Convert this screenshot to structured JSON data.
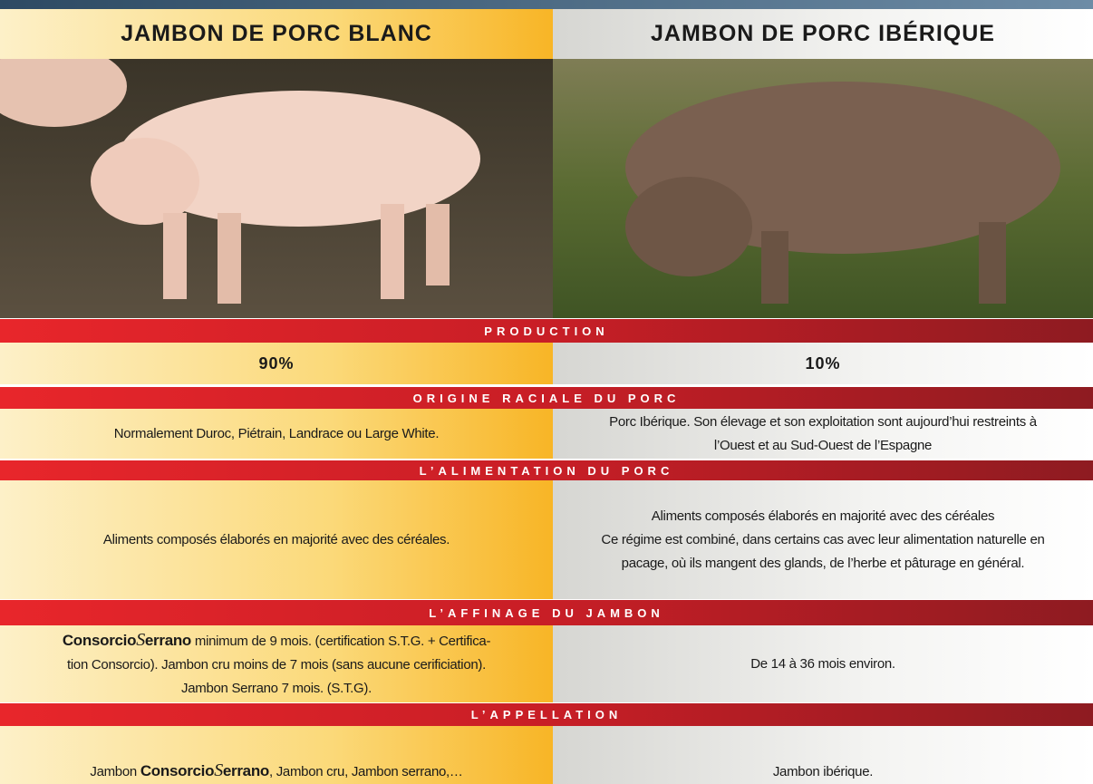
{
  "header": {
    "left": "JAMBON DE PORC BLANC",
    "right": "JAMBON DE PORC IBÉRIQUE"
  },
  "sections": [
    {
      "title": "PRODUCTION",
      "left": [
        "90%"
      ],
      "right": [
        "10%"
      ]
    },
    {
      "title": "ORIGINE RACIALE DU PORC",
      "left": [
        "Normalement  Duroc, Piétrain, Landrace ou Large White."
      ],
      "right": [
        "Porc Ibérique. Son élevage et son exploitation sont aujourd’hui restreints à",
        "l’Ouest et au Sud-Ouest de l’Espagne"
      ]
    },
    {
      "title": "L’ALIMENTATION DU PORC",
      "left": [
        "Aliments composés élaborés en majorité avec des céréales."
      ],
      "right": [
        "Aliments composés élaborés en majorité avec des céréales",
        "Ce régime est combiné, dans certains cas avec leur alimentation naturelle en",
        "pacage, où ils mangent des glands, de l’herbe et pâturage en général."
      ]
    },
    {
      "title": "L’AFFINAGE DU JAMBON",
      "left": [
        {
          "brand": "Consorcio",
          "script": "Serrano",
          "after": " minimum de 9 mois. (certification S.T.G. + Certifica-"
        },
        "tion Consorcio). Jambon cru moins de 7 mois (sans aucune cerificiation).",
        "Jambon Serrano 7 mois. (S.T.G)."
      ],
      "right": [
        "De 14 à 36 mois environ."
      ]
    },
    {
      "title": "L’APPELLATION",
      "left": [
        {
          "before": "Jambon ",
          "brand": "Consorcio",
          "script": "Serrano",
          "after": ", Jambon cru, Jambon serrano,…"
        }
      ],
      "right": [
        "Jambon ibérique."
      ]
    }
  ]
}
